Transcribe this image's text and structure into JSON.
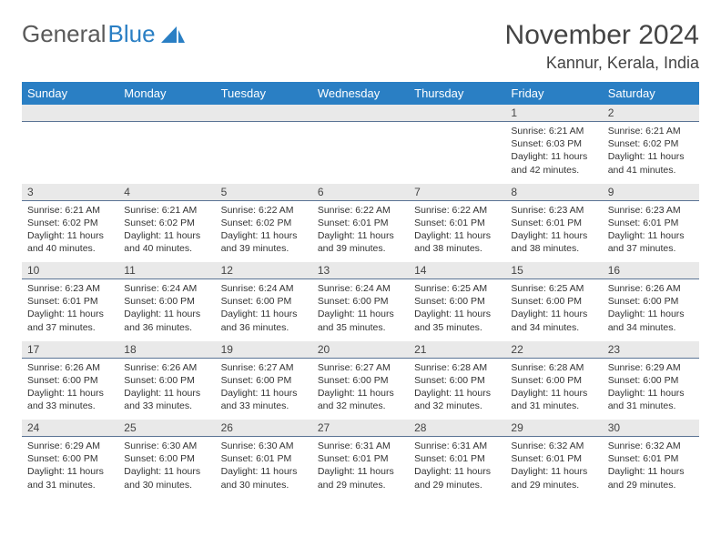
{
  "brand": {
    "first": "General",
    "second": "Blue"
  },
  "title": "November 2024",
  "subtitle": "Kannur, Kerala, India",
  "colors": {
    "header_bg": "#2a7fc4",
    "header_fg": "#ffffff",
    "daynum_bg": "#e9e9e9",
    "daynum_border": "#5b7495",
    "text": "#333333",
    "page_bg": "#ffffff"
  },
  "typography": {
    "title_fontsize": 30,
    "subtitle_fontsize": 18,
    "header_fontsize": 13,
    "daynum_fontsize": 12,
    "cell_fontsize": 10.5
  },
  "week_headers": [
    "Sunday",
    "Monday",
    "Tuesday",
    "Wednesday",
    "Thursday",
    "Friday",
    "Saturday"
  ],
  "weeks": [
    [
      null,
      null,
      null,
      null,
      null,
      {
        "n": "1",
        "sunrise": "6:21 AM",
        "sunset": "6:03 PM",
        "daylight": "11 hours and 42 minutes."
      },
      {
        "n": "2",
        "sunrise": "6:21 AM",
        "sunset": "6:02 PM",
        "daylight": "11 hours and 41 minutes."
      }
    ],
    [
      {
        "n": "3",
        "sunrise": "6:21 AM",
        "sunset": "6:02 PM",
        "daylight": "11 hours and 40 minutes."
      },
      {
        "n": "4",
        "sunrise": "6:21 AM",
        "sunset": "6:02 PM",
        "daylight": "11 hours and 40 minutes."
      },
      {
        "n": "5",
        "sunrise": "6:22 AM",
        "sunset": "6:02 PM",
        "daylight": "11 hours and 39 minutes."
      },
      {
        "n": "6",
        "sunrise": "6:22 AM",
        "sunset": "6:01 PM",
        "daylight": "11 hours and 39 minutes."
      },
      {
        "n": "7",
        "sunrise": "6:22 AM",
        "sunset": "6:01 PM",
        "daylight": "11 hours and 38 minutes."
      },
      {
        "n": "8",
        "sunrise": "6:23 AM",
        "sunset": "6:01 PM",
        "daylight": "11 hours and 38 minutes."
      },
      {
        "n": "9",
        "sunrise": "6:23 AM",
        "sunset": "6:01 PM",
        "daylight": "11 hours and 37 minutes."
      }
    ],
    [
      {
        "n": "10",
        "sunrise": "6:23 AM",
        "sunset": "6:01 PM",
        "daylight": "11 hours and 37 minutes."
      },
      {
        "n": "11",
        "sunrise": "6:24 AM",
        "sunset": "6:00 PM",
        "daylight": "11 hours and 36 minutes."
      },
      {
        "n": "12",
        "sunrise": "6:24 AM",
        "sunset": "6:00 PM",
        "daylight": "11 hours and 36 minutes."
      },
      {
        "n": "13",
        "sunrise": "6:24 AM",
        "sunset": "6:00 PM",
        "daylight": "11 hours and 35 minutes."
      },
      {
        "n": "14",
        "sunrise": "6:25 AM",
        "sunset": "6:00 PM",
        "daylight": "11 hours and 35 minutes."
      },
      {
        "n": "15",
        "sunrise": "6:25 AM",
        "sunset": "6:00 PM",
        "daylight": "11 hours and 34 minutes."
      },
      {
        "n": "16",
        "sunrise": "6:26 AM",
        "sunset": "6:00 PM",
        "daylight": "11 hours and 34 minutes."
      }
    ],
    [
      {
        "n": "17",
        "sunrise": "6:26 AM",
        "sunset": "6:00 PM",
        "daylight": "11 hours and 33 minutes."
      },
      {
        "n": "18",
        "sunrise": "6:26 AM",
        "sunset": "6:00 PM",
        "daylight": "11 hours and 33 minutes."
      },
      {
        "n": "19",
        "sunrise": "6:27 AM",
        "sunset": "6:00 PM",
        "daylight": "11 hours and 33 minutes."
      },
      {
        "n": "20",
        "sunrise": "6:27 AM",
        "sunset": "6:00 PM",
        "daylight": "11 hours and 32 minutes."
      },
      {
        "n": "21",
        "sunrise": "6:28 AM",
        "sunset": "6:00 PM",
        "daylight": "11 hours and 32 minutes."
      },
      {
        "n": "22",
        "sunrise": "6:28 AM",
        "sunset": "6:00 PM",
        "daylight": "11 hours and 31 minutes."
      },
      {
        "n": "23",
        "sunrise": "6:29 AM",
        "sunset": "6:00 PM",
        "daylight": "11 hours and 31 minutes."
      }
    ],
    [
      {
        "n": "24",
        "sunrise": "6:29 AM",
        "sunset": "6:00 PM",
        "daylight": "11 hours and 31 minutes."
      },
      {
        "n": "25",
        "sunrise": "6:30 AM",
        "sunset": "6:00 PM",
        "daylight": "11 hours and 30 minutes."
      },
      {
        "n": "26",
        "sunrise": "6:30 AM",
        "sunset": "6:01 PM",
        "daylight": "11 hours and 30 minutes."
      },
      {
        "n": "27",
        "sunrise": "6:31 AM",
        "sunset": "6:01 PM",
        "daylight": "11 hours and 29 minutes."
      },
      {
        "n": "28",
        "sunrise": "6:31 AM",
        "sunset": "6:01 PM",
        "daylight": "11 hours and 29 minutes."
      },
      {
        "n": "29",
        "sunrise": "6:32 AM",
        "sunset": "6:01 PM",
        "daylight": "11 hours and 29 minutes."
      },
      {
        "n": "30",
        "sunrise": "6:32 AM",
        "sunset": "6:01 PM",
        "daylight": "11 hours and 29 minutes."
      }
    ]
  ],
  "labels": {
    "sunrise_prefix": "Sunrise: ",
    "sunset_prefix": "Sunset: ",
    "daylight_prefix": "Daylight: "
  }
}
